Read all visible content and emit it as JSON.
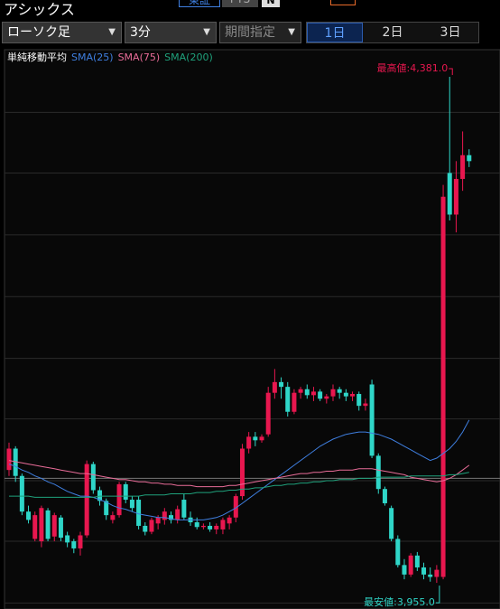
{
  "header": {
    "title": "アシックス",
    "market": "東証",
    "pts": "PTS"
  },
  "controls": {
    "chart_type": "ローソク足",
    "interval": "3分",
    "period": "期間指定",
    "tabs": [
      "1日",
      "2日",
      "3日"
    ],
    "active_tab": 0
  },
  "chart_data": {
    "type": "candlestick",
    "legend_title": "単純移動平均",
    "up_color": "#e8174f",
    "down_color": "#2fd6c8",
    "candles": {
      "open": [
        4050,
        4068,
        4045,
        4015,
        3992,
        3990,
        4016,
        3994,
        4010,
        3995,
        3990,
        3984,
        3995,
        4055,
        4033,
        4024,
        4008,
        4012,
        4038,
        4025,
        4025,
        4003,
        3998,
        4005,
        4008,
        4012,
        4008,
        4025,
        4010,
        4006,
        4002,
        4003,
        4000,
        4000,
        4005,
        4010,
        4028,
        4068,
        4078,
        4075,
        4080,
        4115,
        4124,
        4120,
        4099,
        4115,
        4118,
        4113,
        4116,
        4110,
        4112,
        4118,
        4115,
        4112,
        4114,
        4104,
        4122,
        4062,
        4034,
        4018,
        3992,
        3970,
        3962,
        3978,
        3968,
        3962,
        3960,
        3960,
        4300,
        4265,
        4295,
        4315
      ],
      "high": [
        4073,
        4070,
        4047,
        4020,
        4015,
        4020,
        4018,
        4014,
        4012,
        3998,
        3992,
        3998,
        4058,
        4057,
        4036,
        4026,
        4015,
        4040,
        4040,
        4028,
        4028,
        4006,
        4010,
        4012,
        4018,
        4015,
        4020,
        4030,
        4015,
        4010,
        4005,
        4006,
        4005,
        4010,
        4012,
        4030,
        4072,
        4082,
        4082,
        4080,
        4120,
        4135,
        4128,
        4124,
        4118,
        4120,
        4122,
        4120,
        4118,
        4114,
        4122,
        4120,
        4118,
        4116,
        4116,
        4110,
        4126,
        4064,
        4036,
        4020,
        3995,
        3975,
        3980,
        3981,
        3972,
        3968,
        3970,
        4290,
        4381,
        4310,
        4335,
        4320
      ],
      "low": [
        4045,
        4040,
        4012,
        4005,
        3990,
        3985,
        3990,
        3990,
        3990,
        3985,
        3980,
        3978,
        3993,
        4030,
        4020,
        4008,
        4005,
        4010,
        4022,
        4015,
        4000,
        3995,
        3996,
        4000,
        4004,
        4005,
        4005,
        4008,
        4003,
        4000,
        4000,
        3998,
        3996,
        3996,
        4000,
        4006,
        4025,
        4064,
        4070,
        4073,
        4078,
        4110,
        4110,
        4095,
        4097,
        4110,
        4110,
        4108,
        4108,
        4106,
        4108,
        4110,
        4108,
        4108,
        4100,
        4100,
        4060,
        4030,
        4020,
        3990,
        3968,
        3958,
        3960,
        3965,
        3958,
        3956,
        3955,
        3958,
        4260,
        4250,
        4285,
        4305
      ],
      "close": [
        4068,
        4045,
        4015,
        4008,
        4012,
        4018,
        3992,
        4012,
        3993,
        3989,
        3984,
        3995,
        4055,
        4033,
        4024,
        4012,
        4012,
        4038,
        4025,
        4018,
        4003,
        3998,
        4008,
        4010,
        4015,
        4008,
        4017,
        4010,
        4006,
        4002,
        4003,
        4000,
        4003,
        4008,
        4010,
        4028,
        4068,
        4078,
        4075,
        4078,
        4115,
        4124,
        4120,
        4099,
        4115,
        4118,
        4113,
        4116,
        4110,
        4112,
        4118,
        4115,
        4112,
        4114,
        4104,
        4106,
        4062,
        4034,
        4022,
        3992,
        3970,
        3962,
        3978,
        3968,
        3962,
        3960,
        3966,
        4280,
        4265,
        4295,
        4315,
        4310
      ]
    },
    "series": [
      {
        "name": "SMA(25)",
        "color": "#3f7fe0",
        "values": [
          4055,
          4053,
          4050,
          4048,
          4045,
          4043,
          4040,
          4038,
          4035,
          4032,
          4030,
          4028,
          4028,
          4027,
          4025,
          4023,
          4020,
          4018,
          4017,
          4015,
          4013,
          4012,
          4011,
          4010,
          4010,
          4009,
          4008,
          4008,
          4008,
          4008,
          4008,
          4009,
          4010,
          4012,
          4015,
          4018,
          4022,
          4026,
          4030,
          4034,
          4038,
          4042,
          4046,
          4050,
          4054,
          4058,
          4062,
          4066,
          4070,
          4073,
          4076,
          4078,
          4080,
          4081,
          4082,
          4082,
          4081,
          4080,
          4078,
          4076,
          4073,
          4070,
          4067,
          4064,
          4061,
          4058,
          4060,
          4064,
          4068,
          4074,
          4082,
          4092
        ]
      },
      {
        "name": "SMA(75)",
        "color": "#e86c98",
        "values": [
          4058,
          4057,
          4056,
          4055,
          4054,
          4053,
          4052,
          4051,
          4050,
          4049,
          4048,
          4047,
          4047,
          4046,
          4045,
          4044,
          4043,
          4042,
          4042,
          4041,
          4040,
          4040,
          4039,
          4039,
          4038,
          4038,
          4037,
          4037,
          4037,
          4036,
          4036,
          4036,
          4036,
          4036,
          4037,
          4037,
          4038,
          4039,
          4040,
          4041,
          4042,
          4043,
          4044,
          4045,
          4046,
          4047,
          4047,
          4048,
          4048,
          4049,
          4049,
          4050,
          4050,
          4050,
          4051,
          4051,
          4051,
          4050,
          4049,
          4048,
          4047,
          4046,
          4044,
          4043,
          4042,
          4041,
          4040,
          4041,
          4043,
          4046,
          4050,
          4054
        ]
      },
      {
        "name": "SMA(200)",
        "color": "#1fa27c",
        "values": [
          4028,
          4028,
          4028,
          4028,
          4027,
          4027,
          4027,
          4027,
          4027,
          4027,
          4027,
          4027,
          4027,
          4027,
          4028,
          4028,
          4028,
          4028,
          4028,
          4028,
          4028,
          4029,
          4029,
          4029,
          4029,
          4030,
          4030,
          4030,
          4030,
          4031,
          4031,
          4031,
          4032,
          4032,
          4033,
          4033,
          4034,
          4034,
          4035,
          4035,
          4036,
          4037,
          4037,
          4038,
          4038,
          4039,
          4039,
          4040,
          4040,
          4041,
          4041,
          4042,
          4042,
          4042,
          4043,
          4043,
          4043,
          4044,
          4044,
          4044,
          4044,
          4044,
          4045,
          4045,
          4045,
          4045,
          4045,
          4045,
          4046,
          4046,
          4047,
          4048
        ]
      }
    ],
    "ylim": [
      3933,
      4401.5
    ],
    "yticks": [
      3938,
      3990,
      4041,
      4093,
      4144,
      4196,
      4248,
      4300,
      4351
    ],
    "grid": true,
    "reference_line": 4043,
    "annotations": [
      {
        "text": "最高値:4,381.0",
        "value": 4381,
        "candle": 68
      },
      {
        "text": "最安値:3,955.0",
        "value": 3955,
        "candle": 66
      }
    ]
  }
}
